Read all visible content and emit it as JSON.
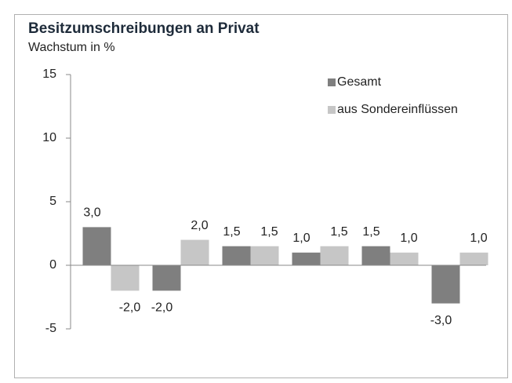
{
  "chart_data": {
    "type": "bar",
    "title": "Besitzumschreibungen an Privat",
    "subtitle": "Wachstum in %",
    "categories": [
      null,
      null,
      null,
      null,
      null,
      null
    ],
    "series": [
      {
        "name": "Gesamt",
        "color": "#7f7f7f",
        "values": [
          3.0,
          -2.0,
          1.5,
          1.0,
          1.5,
          -3.0
        ],
        "value_labels": [
          "3,0",
          "-2,0",
          "1,5",
          "1,0",
          "1,5",
          "-3,0"
        ]
      },
      {
        "name": "aus Sondereinflüssen",
        "color": "#c6c6c6",
        "values": [
          -2.0,
          2.0,
          1.5,
          1.5,
          1.0,
          1.0
        ],
        "value_labels": [
          "-2,0",
          "2,0",
          "1,5",
          "1,5",
          "1,0",
          "1,0"
        ]
      }
    ],
    "ylim": [
      -5,
      15
    ],
    "yticks": [
      -5,
      0,
      5,
      10,
      15
    ],
    "legend": "upper right"
  }
}
